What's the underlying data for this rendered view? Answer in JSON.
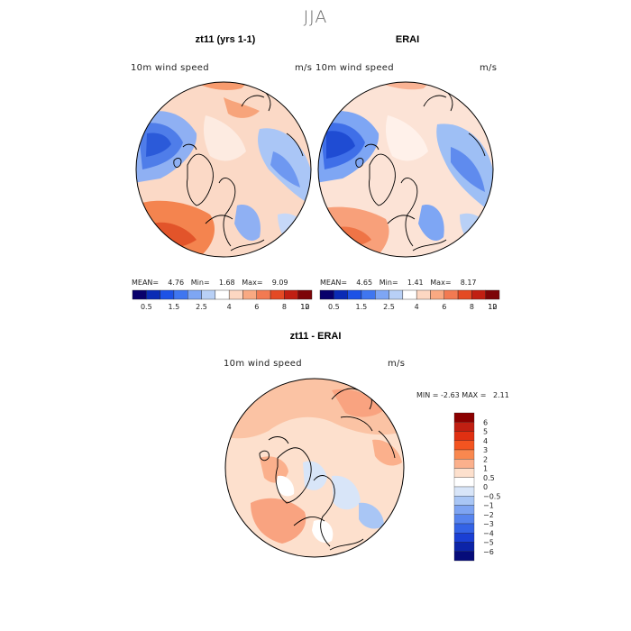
{
  "figure": {
    "title": "JJA",
    "colors": {
      "coastline": "#000000",
      "panel_bg": "#ffffff"
    }
  },
  "panels": [
    {
      "id": "model",
      "title": "zt11 (yrs 1-1)",
      "variable": "10m wind speed",
      "units": "m/s",
      "stats": {
        "mean_label": "MEAN=",
        "mean": "4.76",
        "min_label": "Min=",
        "min": "1.68",
        "max_label": "Max=",
        "max": "9.09"
      }
    },
    {
      "id": "obs",
      "title": "ERAI",
      "variable": "10m wind speed",
      "units": "m/s",
      "stats": {
        "mean_label": "MEAN=",
        "mean": "4.65",
        "min_label": "Min=",
        "min": "1.41",
        "max_label": "Max=",
        "max": "8.17"
      }
    },
    {
      "id": "diff",
      "title": "zt11 - ERAI",
      "variable": "10m wind speed",
      "units": "m/s",
      "stats": {
        "min_label": "MIN =",
        "min": "-2.63",
        "max_label": "MAX =",
        "max": "2.11"
      }
    }
  ],
  "colorbar_top": {
    "colors": [
      "#08006b",
      "#0a2bb5",
      "#1d52e6",
      "#3f76f0",
      "#7ea6f4",
      "#b8d0f6",
      "#ffffff",
      "#fdd7c2",
      "#f9a982",
      "#f27a52",
      "#e44a24",
      "#c11f12",
      "#7d0508"
    ],
    "tick_labels": [
      "0.5",
      "1.5",
      "2.5",
      "4",
      "6",
      "8",
      "10",
      "12"
    ]
  },
  "colorbar_diff": {
    "colors": [
      "#8b0000",
      "#c11f12",
      "#e03012",
      "#f35420",
      "#f9884f",
      "#fbb08c",
      "#fde0cd",
      "#ffffff",
      "#d8e5f8",
      "#a9c6f5",
      "#7ea4f2",
      "#5784ee",
      "#3463e6",
      "#1a3fd4",
      "#0c24a8",
      "#060c7a"
    ],
    "tick_labels": [
      "6",
      "5",
      "4",
      "3",
      "2",
      "1",
      "0.5",
      "0",
      "−0.5",
      "−1",
      "−2",
      "−3",
      "−4",
      "−5",
      "−6"
    ]
  }
}
